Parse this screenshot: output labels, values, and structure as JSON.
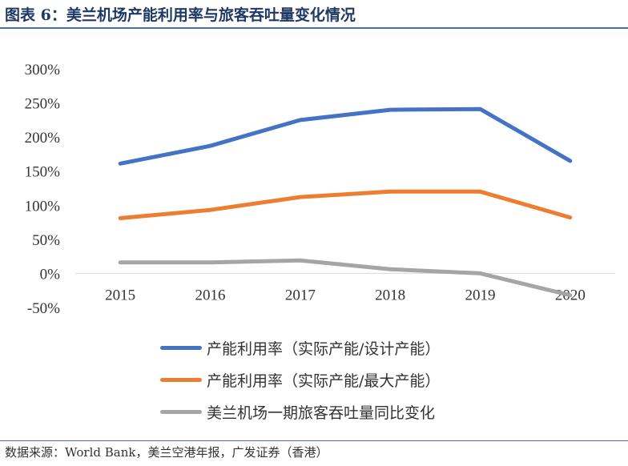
{
  "header": {
    "title": "图表 6：美兰机场产能利用率与旅客吞吐量变化情况"
  },
  "chart_data": {
    "type": "line",
    "categories": [
      "2015",
      "2016",
      "2017",
      "2018",
      "2019",
      "2020"
    ],
    "series": [
      {
        "name": "产能利用率（实际产能/设计产能）",
        "values": [
          161,
          187,
          225,
          240,
          241,
          165
        ],
        "color": "#4472c4"
      },
      {
        "name": "产能利用率（实际产能/最大产能）",
        "values": [
          81,
          93,
          112,
          120,
          120,
          82
        ],
        "color": "#ed7d31"
      },
      {
        "name": "美兰机场一期旅客吞吐量同比变化",
        "values": [
          16,
          16,
          19,
          6,
          0,
          -32
        ],
        "color": "#a5a5a5"
      }
    ],
    "yticks": [
      "300%",
      "250%",
      "200%",
      "150%",
      "100%",
      "50%",
      "0%",
      "-50%"
    ],
    "ylim": [
      -50,
      300
    ],
    "y_unit": "%",
    "legend_position": "bottom",
    "title": "",
    "xlabel": "",
    "ylabel": ""
  },
  "footer": {
    "source": "数据来源：World Bank，美兰空港年报，广发证券（香港）"
  }
}
